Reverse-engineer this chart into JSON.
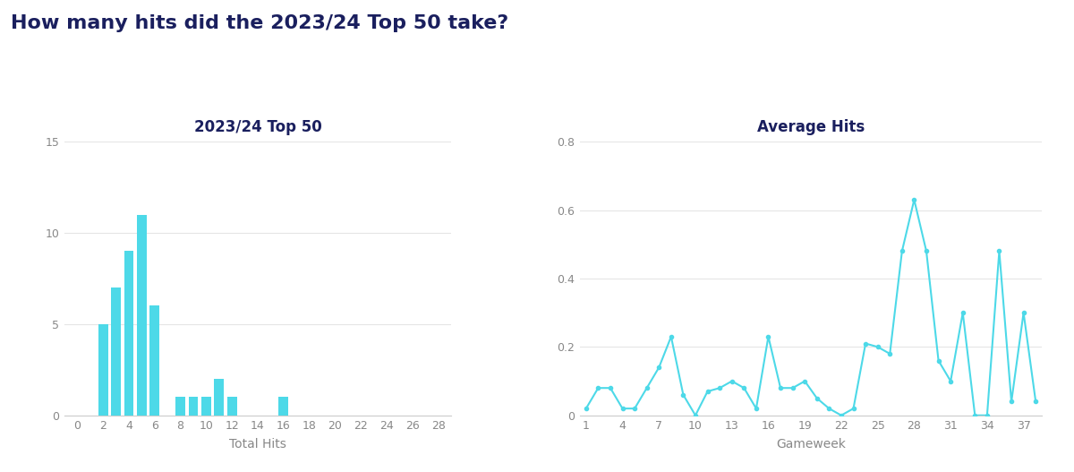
{
  "title": "How many hits did the 2023/24 Top 50 take?",
  "title_color": "#1a1f5e",
  "background_color": "#ffffff",
  "hist_title": "2023/24 Top 50",
  "hist_xlabel": "Total Hits",
  "hist_bar_x": [
    0,
    1,
    2,
    3,
    4,
    5,
    6,
    7,
    8,
    9,
    10,
    11,
    12,
    13,
    14,
    15,
    16,
    17,
    18,
    19,
    20,
    21,
    22,
    23,
    24,
    25,
    26,
    27,
    28
  ],
  "hist_bar_y": [
    0,
    0,
    5,
    7,
    9,
    11,
    6,
    0,
    1,
    1,
    1,
    2,
    1,
    0,
    0,
    0,
    1,
    0,
    0,
    0,
    0,
    0,
    0,
    0,
    0,
    0,
    0,
    0,
    0
  ],
  "hist_ylim": [
    0,
    15
  ],
  "hist_yticks": [
    0,
    5,
    10,
    15
  ],
  "hist_xticks": [
    0,
    2,
    4,
    6,
    8,
    10,
    12,
    14,
    16,
    18,
    20,
    22,
    24,
    26,
    28
  ],
  "hist_bar_color": "#4dd9e8",
  "line_title": "Average Hits",
  "line_xlabel": "Gameweek",
  "line_gw": [
    1,
    2,
    3,
    4,
    5,
    6,
    7,
    8,
    9,
    10,
    11,
    12,
    13,
    14,
    15,
    16,
    17,
    18,
    19,
    20,
    21,
    22,
    23,
    24,
    25,
    26,
    27,
    28,
    29,
    30,
    31,
    32,
    33,
    34,
    35,
    36,
    37,
    38
  ],
  "line_avg": [
    0.02,
    0.08,
    0.08,
    0.02,
    0.02,
    0.08,
    0.14,
    0.23,
    0.06,
    0.0,
    0.07,
    0.08,
    0.1,
    0.08,
    0.02,
    0.23,
    0.08,
    0.08,
    0.1,
    0.05,
    0.02,
    0.0,
    0.02,
    0.21,
    0.2,
    0.18,
    0.48,
    0.63,
    0.48,
    0.16,
    0.1,
    0.3,
    0.0,
    0.0,
    0.48,
    0.04,
    0.3,
    0.04
  ],
  "line_ylim": [
    0,
    0.8
  ],
  "line_yticks": [
    0,
    0.2,
    0.4,
    0.6,
    0.8
  ],
  "line_xticks": [
    1,
    4,
    7,
    10,
    13,
    16,
    19,
    22,
    25,
    28,
    31,
    34,
    37
  ],
  "line_color": "#4dd9e8",
  "line_marker": "o",
  "line_marker_size": 3,
  "line_width": 1.5,
  "subtitle_fontsize": 12,
  "axis_label_fontsize": 10,
  "tick_fontsize": 9,
  "title_fontsize": 16
}
